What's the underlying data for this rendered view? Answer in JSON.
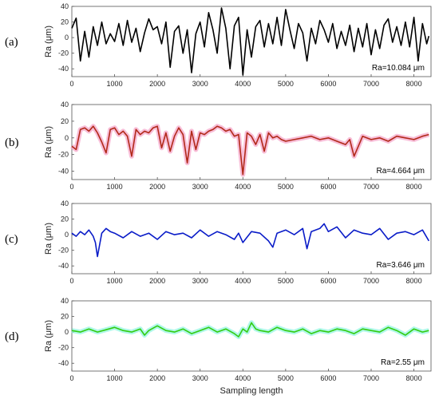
{
  "figure": {
    "xlabel": "Sampling length"
  },
  "chart_data": [
    {
      "type": "line",
      "panel_label": "(a)",
      "ylabel": "Ra (μm)",
      "annotation": "Ra=10.084 μm",
      "color": "#000000",
      "shadow": "",
      "xlim": [
        0,
        8400
      ],
      "ylim": [
        -50,
        40
      ],
      "xticks": [
        0,
        1000,
        2000,
        3000,
        4000,
        5000,
        6000,
        7000,
        8000
      ],
      "yticks": [
        40,
        20,
        0,
        -20,
        -40
      ],
      "x": [
        0,
        100,
        200,
        300,
        400,
        500,
        600,
        700,
        800,
        900,
        1000,
        1100,
        1200,
        1300,
        1400,
        1500,
        1600,
        1700,
        1800,
        1900,
        2000,
        2100,
        2200,
        2300,
        2400,
        2500,
        2600,
        2700,
        2800,
        2900,
        3000,
        3100,
        3200,
        3300,
        3400,
        3500,
        3600,
        3700,
        3800,
        3900,
        4000,
        4100,
        4200,
        4300,
        4400,
        4500,
        4600,
        4700,
        4800,
        4900,
        5000,
        5100,
        5200,
        5300,
        5400,
        5500,
        5600,
        5700,
        5800,
        5900,
        6000,
        6100,
        6200,
        6300,
        6400,
        6500,
        6600,
        6700,
        6800,
        6900,
        7000,
        7100,
        7200,
        7300,
        7400,
        7500,
        7600,
        7700,
        7800,
        7900,
        8000,
        8100,
        8200,
        8300,
        8350
      ],
      "y": [
        12,
        25,
        -30,
        8,
        -25,
        14,
        -10,
        20,
        -8,
        5,
        -5,
        18,
        -10,
        22,
        -6,
        12,
        -18,
        6,
        24,
        10,
        14,
        -8,
        20,
        -38,
        8,
        15,
        -20,
        10,
        -45,
        5,
        20,
        -12,
        32,
        10,
        -20,
        38,
        12,
        -40,
        15,
        26,
        -48,
        10,
        -25,
        14,
        22,
        -12,
        18,
        -8,
        26,
        -10,
        36,
        10,
        -14,
        18,
        6,
        -30,
        12,
        -8,
        22,
        10,
        -6,
        18,
        -14,
        8,
        -10,
        16,
        -18,
        12,
        -12,
        18,
        -22,
        10,
        -14,
        16,
        24,
        -6,
        14,
        -10,
        20,
        -12,
        26,
        -30,
        18,
        -8,
        2
      ]
    },
    {
      "type": "line",
      "panel_label": "(b)",
      "ylabel": "Ra (μm)",
      "annotation": "Ra=4.664 μm",
      "color": "#b22a1a",
      "shadow": "#f5a3c7",
      "xlim": [
        0,
        8400
      ],
      "ylim": [
        -50,
        40
      ],
      "xticks": [
        0,
        1000,
        2000,
        3000,
        4000,
        5000,
        6000,
        7000,
        8000
      ],
      "yticks": [
        40,
        20,
        0,
        -20,
        -40
      ],
      "x": [
        0,
        100,
        200,
        300,
        400,
        500,
        600,
        700,
        800,
        900,
        1000,
        1100,
        1200,
        1300,
        1400,
        1500,
        1600,
        1700,
        1800,
        1900,
        2000,
        2100,
        2200,
        2300,
        2400,
        2500,
        2600,
        2700,
        2800,
        2900,
        3000,
        3100,
        3200,
        3300,
        3400,
        3500,
        3600,
        3700,
        3800,
        3900,
        3950,
        4000,
        4100,
        4200,
        4300,
        4400,
        4500,
        4600,
        4700,
        4800,
        4900,
        5000,
        5200,
        5400,
        5600,
        5800,
        6000,
        6200,
        6400,
        6500,
        6600,
        6800,
        7000,
        7200,
        7400,
        7600,
        7800,
        8000,
        8200,
        8350
      ],
      "y": [
        -10,
        -14,
        10,
        12,
        8,
        14,
        6,
        -5,
        -18,
        10,
        12,
        4,
        8,
        2,
        -22,
        10,
        4,
        8,
        6,
        12,
        14,
        -12,
        6,
        -16,
        2,
        12,
        4,
        -30,
        8,
        -14,
        6,
        4,
        8,
        10,
        14,
        12,
        8,
        10,
        2,
        4,
        -20,
        -44,
        6,
        2,
        -8,
        4,
        -16,
        6,
        0,
        2,
        -2,
        -4,
        -2,
        0,
        2,
        -2,
        0,
        -4,
        -8,
        -2,
        -22,
        2,
        -2,
        0,
        -4,
        2,
        0,
        -2,
        2,
        4
      ]
    },
    {
      "type": "line",
      "panel_label": "(c)",
      "ylabel": "Ra (μm)",
      "annotation": "Ra=3.646 μm",
      "color": "#0a1cc8",
      "shadow": "",
      "xlim": [
        0,
        8400
      ],
      "ylim": [
        -50,
        40
      ],
      "xticks": [
        0,
        1000,
        2000,
        3000,
        4000,
        5000,
        6000,
        7000,
        8000
      ],
      "yticks": [
        40,
        20,
        0,
        -20,
        -40
      ],
      "x": [
        0,
        100,
        200,
        300,
        400,
        500,
        550,
        600,
        700,
        800,
        900,
        1000,
        1200,
        1400,
        1600,
        1800,
        2000,
        2200,
        2400,
        2600,
        2800,
        3000,
        3200,
        3400,
        3600,
        3800,
        3900,
        4000,
        4200,
        4400,
        4600,
        4700,
        4800,
        5000,
        5200,
        5400,
        5500,
        5600,
        5800,
        5900,
        6000,
        6200,
        6400,
        6600,
        6800,
        7000,
        7200,
        7400,
        7600,
        7800,
        8000,
        8200,
        8350
      ],
      "y": [
        2,
        -2,
        4,
        0,
        6,
        -2,
        -10,
        -28,
        2,
        8,
        4,
        2,
        -4,
        4,
        -2,
        2,
        -6,
        4,
        0,
        2,
        -4,
        6,
        -2,
        4,
        0,
        -6,
        2,
        -10,
        4,
        2,
        -8,
        -16,
        2,
        6,
        0,
        8,
        -18,
        4,
        8,
        14,
        4,
        10,
        -4,
        6,
        2,
        0,
        8,
        -6,
        2,
        4,
        0,
        6,
        -8
      ]
    },
    {
      "type": "line",
      "panel_label": "(d)",
      "ylabel": "Ra (μm)",
      "annotation": "Ra=2.55 μm",
      "color": "#33cc11",
      "shadow": "#8ff5e0",
      "xlim": [
        0,
        8400
      ],
      "ylim": [
        -50,
        40
      ],
      "xticks": [
        0,
        1000,
        2000,
        3000,
        4000,
        5000,
        6000,
        7000,
        8000
      ],
      "yticks": [
        40,
        20,
        0,
        -20,
        -40
      ],
      "x": [
        0,
        200,
        400,
        600,
        800,
        1000,
        1200,
        1400,
        1600,
        1700,
        1800,
        2000,
        2200,
        2400,
        2600,
        2800,
        3000,
        3200,
        3400,
        3600,
        3800,
        3900,
        4000,
        4100,
        4200,
        4300,
        4400,
        4600,
        4800,
        5000,
        5200,
        5400,
        5600,
        5800,
        6000,
        6200,
        6400,
        6600,
        6800,
        7000,
        7200,
        7400,
        7600,
        7800,
        8000,
        8200,
        8350
      ],
      "y": [
        2,
        0,
        4,
        0,
        3,
        6,
        2,
        0,
        4,
        -4,
        2,
        8,
        2,
        0,
        4,
        -2,
        2,
        6,
        0,
        4,
        -2,
        -6,
        4,
        0,
        12,
        4,
        2,
        0,
        6,
        2,
        0,
        4,
        -2,
        2,
        0,
        4,
        2,
        -2,
        4,
        2,
        0,
        6,
        2,
        -4,
        4,
        0,
        2
      ]
    }
  ]
}
